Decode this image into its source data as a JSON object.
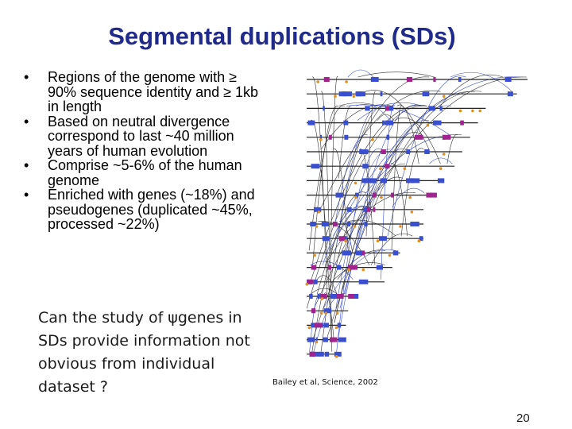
{
  "slide": {
    "title": "Segmental duplications (SDs)",
    "bullets": [
      "Regions of the genome with ≥ 90% sequence identity and ≥ 1kb in length",
      "Based on neutral divergence correspond to last ~40 million years of human evolution",
      "Comprise ~5-6% of the human genome",
      "Enriched with genes (~18%) and pseudogenes (duplicated ~45%, processed ~22%)"
    ],
    "question": "Can the study of ψgenes in SDs provide information not obvious from individual dataset ?",
    "citation": "Bailey et al, Science, 2002",
    "page_number": "20"
  },
  "figure": {
    "description_icon": "chromosome-duplication-map",
    "colors": {
      "chromosome": "#3a4fd0",
      "highlight": "#a0238f",
      "line": "#333333",
      "marker": "#e09020"
    }
  }
}
